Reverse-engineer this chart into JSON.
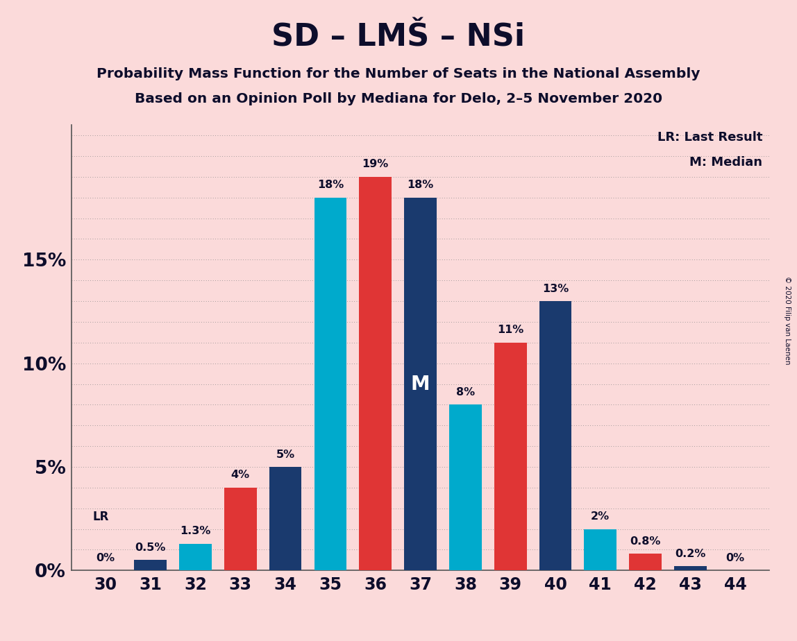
{
  "title": "SD – LMŠ – NSi",
  "subtitle1": "Probability Mass Function for the Number of Seats in the National Assembly",
  "subtitle2": "Based on an Opinion Poll by Mediana for Delo, 2–5 November 2020",
  "copyright": "© 2020 Filip van Laenen",
  "seats": [
    30,
    31,
    32,
    33,
    34,
    35,
    36,
    37,
    38,
    39,
    40,
    41,
    42,
    43,
    44
  ],
  "values": [
    0.0,
    0.5,
    1.3,
    4.0,
    5.0,
    18.0,
    19.0,
    18.0,
    8.0,
    11.0,
    13.0,
    2.0,
    0.8,
    0.2,
    0.0
  ],
  "bar_colors": [
    "#00AACC",
    "#1A3A6E",
    "#00AACC",
    "#E03535",
    "#1A3A6E",
    "#00AACC",
    "#E03535",
    "#1A3A6E",
    "#00AACC",
    "#E03535",
    "#1A3A6E",
    "#00AACC",
    "#E03535",
    "#1A3A6E",
    "#00AACC"
  ],
  "background_color": "#FBDADA",
  "bar_label_color": "#0D0D2B",
  "lr_seat": 30,
  "median_seat": 37,
  "ylim": [
    0,
    21.5
  ],
  "legend_lr": "LR: Last Result",
  "legend_m": "M: Median",
  "dotted_grid_color": "#888888",
  "ytick_values": [
    0,
    5,
    10,
    15
  ],
  "ytick_labels": [
    "0%",
    "5%",
    "10%",
    "15%"
  ],
  "bar_labels": [
    "0%",
    "0.5%",
    "1.3%",
    "4%",
    "5%",
    "18%",
    "19%",
    "18%",
    "8%",
    "11%",
    "13%",
    "2%",
    "0.8%",
    "0.2%",
    "0%"
  ]
}
